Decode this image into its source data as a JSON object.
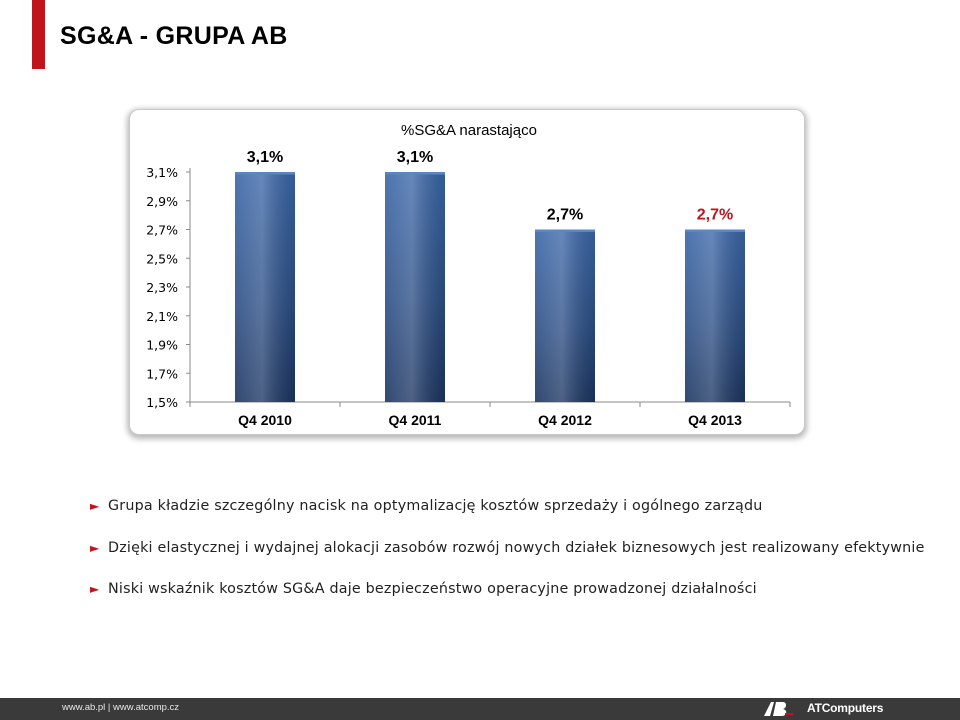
{
  "slide": {
    "title": "SG&A - GRUPA AB",
    "accent_color": "#c0141c"
  },
  "chart_data": {
    "type": "bar",
    "title": "%SG&A narastająco",
    "categories": [
      "Q4 2010",
      "Q4 2011",
      "Q4 2012",
      "Q4 2013"
    ],
    "values": [
      3.1,
      3.1,
      2.7,
      2.7
    ],
    "data_labels": [
      "3,1%",
      "3,1%",
      "2,7%",
      "2,7%"
    ],
    "data_label_colors": [
      "#000000",
      "#000000",
      "#000000",
      "#c0141c"
    ],
    "y_ticks": [
      "1,5%",
      "1,7%",
      "1,9%",
      "2,1%",
      "2,3%",
      "2,5%",
      "2,7%",
      "2,9%",
      "3,1%"
    ],
    "ylim": [
      1.5,
      3.1
    ],
    "grid": false,
    "legend": "none",
    "bar_color": "#2f5590"
  },
  "bullets": [
    "Grupa kładzie szczególny nacisk na optymalizację kosztów sprzedaży i ogólnego zarządu",
    "Dzięki elastycznej i wydajnej alokacji zasobów rozwój nowych działek biznesowych jest realizowany efektywnie",
    "Niski wskaźnik kosztów SG&A daje bezpieczeństwo operacyjne prowadzonej działalności"
  ],
  "bullet_marker": "►",
  "footer": {
    "links": "www.ab.pl  |  www.atcomp.cz",
    "brand": "ATComputers",
    "logo_text": "AB"
  }
}
